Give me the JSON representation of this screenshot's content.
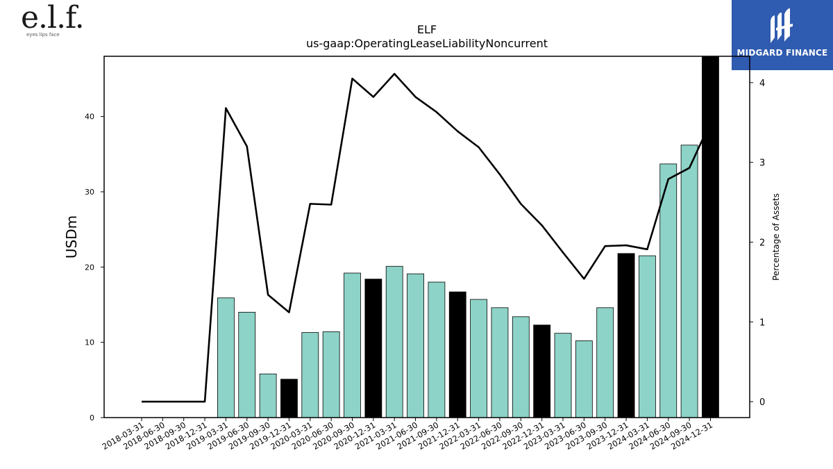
{
  "logo": {
    "mark_text": "e.l.f.",
    "tagline": "eyes lips face"
  },
  "brand": {
    "name": "MIDGARD FINANCE",
    "background": "#2f5bb0"
  },
  "chart_data": {
    "type": "bar",
    "title": "ELF",
    "subtitle": "us-gaap:OperatingLeaseLiabilityNoncurrent",
    "ylabel": "USDm",
    "y2label": "Percentage of Assets",
    "ylim": [
      0,
      48
    ],
    "y2lim": [
      -0.2,
      4.33
    ],
    "yticks": [
      0,
      10,
      20,
      30,
      40
    ],
    "y2ticks": [
      0,
      1,
      2,
      3,
      4
    ],
    "categories": [
      "2018-03-31",
      "2018-06-30",
      "2018-09-30",
      "2018-12-31",
      "2019-03-31",
      "2019-06-30",
      "2019-09-30",
      "2019-12-31",
      "2020-03-31",
      "2020-06-30",
      "2020-09-30",
      "2020-12-31",
      "2021-03-31",
      "2021-06-30",
      "2021-09-30",
      "2021-12-31",
      "2022-03-31",
      "2022-06-30",
      "2022-09-30",
      "2022-12-31",
      "2023-03-31",
      "2023-06-30",
      "2023-09-30",
      "2023-12-31",
      "2024-03-31",
      "2024-06-30",
      "2024-09-30",
      "2024-12-31"
    ],
    "series": [
      {
        "kind": "bar",
        "values": [
          0,
          0,
          0,
          0,
          15.9,
          14.0,
          5.8,
          5.1,
          11.3,
          11.4,
          19.2,
          18.4,
          20.1,
          19.1,
          18.0,
          16.7,
          15.7,
          14.6,
          13.4,
          12.3,
          11.2,
          10.2,
          14.6,
          21.8,
          21.5,
          33.7,
          36.2,
          48.0
        ],
        "highlight": [
          false,
          false,
          false,
          false,
          false,
          false,
          false,
          true,
          false,
          false,
          false,
          true,
          false,
          false,
          false,
          true,
          false,
          false,
          false,
          true,
          false,
          false,
          false,
          true,
          false,
          false,
          false,
          true
        ]
      },
      {
        "kind": "line",
        "axis": "right",
        "values": [
          0,
          0,
          0,
          0,
          3.68,
          3.2,
          1.34,
          1.12,
          2.48,
          2.47,
          4.05,
          3.82,
          4.11,
          3.82,
          3.63,
          3.39,
          3.19,
          2.85,
          2.48,
          2.21,
          1.87,
          1.54,
          1.95,
          1.96,
          1.91,
          2.79,
          2.93,
          3.5
        ]
      }
    ],
    "colors": {
      "bar": "#8dd3c7",
      "bar_highlight": "#000000",
      "line": "#000000",
      "axis": "#000000"
    },
    "grid": false,
    "legend": "none"
  }
}
